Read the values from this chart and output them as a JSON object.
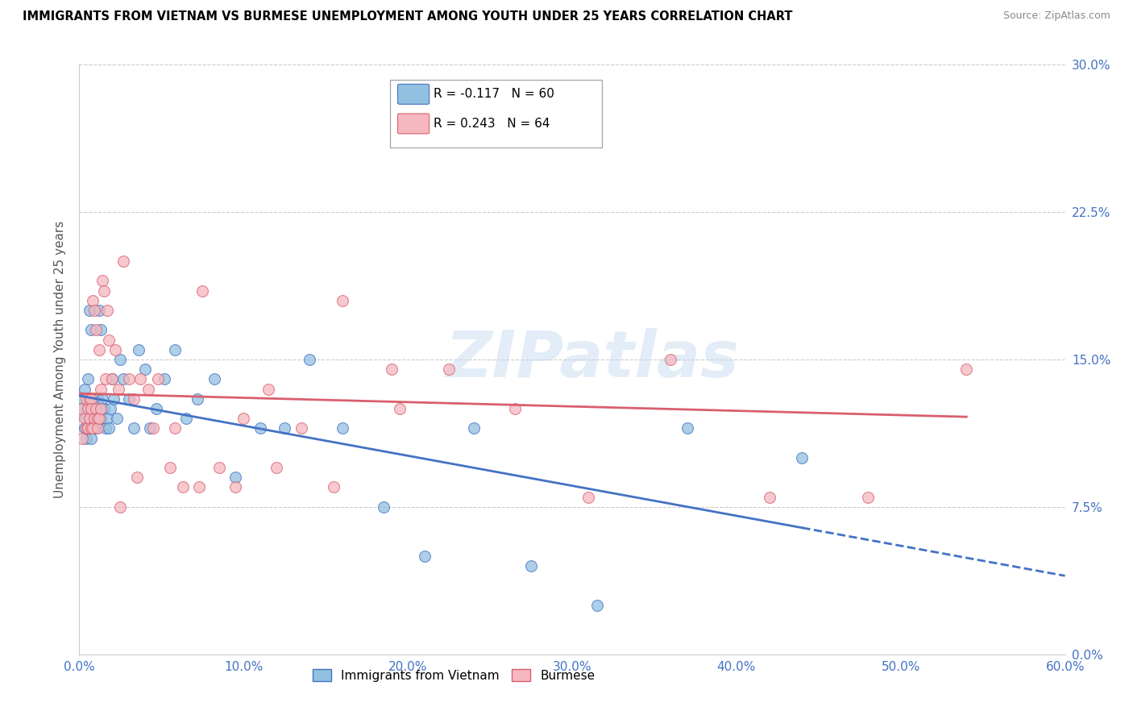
{
  "title": "IMMIGRANTS FROM VIETNAM VS BURMESE UNEMPLOYMENT AMONG YOUTH UNDER 25 YEARS CORRELATION CHART",
  "source": "Source: ZipAtlas.com",
  "ylabel": "Unemployment Among Youth under 25 years",
  "ylabel_ticks": [
    "0.0%",
    "7.5%",
    "15.0%",
    "22.5%",
    "30.0%"
  ],
  "ylabel_vals": [
    0.0,
    0.075,
    0.15,
    0.225,
    0.3
  ],
  "xlabel_ticks": [
    "0.0%",
    "10.0%",
    "20.0%",
    "30.0%",
    "40.0%",
    "50.0%",
    "60.0%"
  ],
  "xlabel_vals": [
    0.0,
    0.1,
    0.2,
    0.3,
    0.4,
    0.5,
    0.6
  ],
  "xlim": [
    0.0,
    0.6
  ],
  "ylim": [
    0.0,
    0.3
  ],
  "legend1_r": "R = -0.117",
  "legend1_n": "N = 60",
  "legend2_r": "R = 0.243",
  "legend2_n": "N = 64",
  "series1_name": "Immigrants from Vietnam",
  "series2_name": "Burmese",
  "series1_color": "#92C0E0",
  "series2_color": "#F5B8C0",
  "trend1_color": "#4472C4",
  "trend2_color": "#D95F6E",
  "watermark": "ZIPatlas",
  "vietnam_x": [
    0.001,
    0.002,
    0.003,
    0.003,
    0.004,
    0.004,
    0.005,
    0.005,
    0.005,
    0.006,
    0.006,
    0.007,
    0.007,
    0.007,
    0.008,
    0.008,
    0.008,
    0.009,
    0.009,
    0.01,
    0.01,
    0.011,
    0.011,
    0.012,
    0.013,
    0.013,
    0.014,
    0.015,
    0.016,
    0.017,
    0.018,
    0.019,
    0.02,
    0.021,
    0.023,
    0.025,
    0.027,
    0.03,
    0.033,
    0.036,
    0.04,
    0.043,
    0.047,
    0.052,
    0.058,
    0.065,
    0.072,
    0.082,
    0.095,
    0.11,
    0.125,
    0.14,
    0.16,
    0.185,
    0.21,
    0.24,
    0.275,
    0.315,
    0.37,
    0.44
  ],
  "vietnam_y": [
    0.125,
    0.13,
    0.115,
    0.135,
    0.12,
    0.11,
    0.125,
    0.14,
    0.115,
    0.175,
    0.12,
    0.165,
    0.12,
    0.11,
    0.118,
    0.125,
    0.115,
    0.13,
    0.115,
    0.12,
    0.115,
    0.118,
    0.13,
    0.175,
    0.165,
    0.12,
    0.13,
    0.125,
    0.115,
    0.12,
    0.115,
    0.125,
    0.14,
    0.13,
    0.12,
    0.15,
    0.14,
    0.13,
    0.115,
    0.155,
    0.145,
    0.115,
    0.125,
    0.14,
    0.155,
    0.12,
    0.13,
    0.14,
    0.09,
    0.115,
    0.115,
    0.15,
    0.115,
    0.075,
    0.05,
    0.115,
    0.045,
    0.025,
    0.115,
    0.1
  ],
  "burmese_x": [
    0.001,
    0.002,
    0.003,
    0.004,
    0.004,
    0.005,
    0.005,
    0.006,
    0.006,
    0.007,
    0.007,
    0.007,
    0.008,
    0.008,
    0.009,
    0.009,
    0.01,
    0.01,
    0.011,
    0.011,
    0.012,
    0.012,
    0.013,
    0.013,
    0.014,
    0.015,
    0.016,
    0.017,
    0.018,
    0.02,
    0.022,
    0.024,
    0.027,
    0.03,
    0.033,
    0.037,
    0.042,
    0.048,
    0.055,
    0.063,
    0.073,
    0.085,
    0.1,
    0.115,
    0.135,
    0.16,
    0.19,
    0.225,
    0.265,
    0.31,
    0.36,
    0.42,
    0.48,
    0.54,
    0.27,
    0.195,
    0.155,
    0.12,
    0.095,
    0.075,
    0.058,
    0.045,
    0.035,
    0.025
  ],
  "burmese_y": [
    0.125,
    0.11,
    0.12,
    0.13,
    0.115,
    0.125,
    0.115,
    0.12,
    0.13,
    0.13,
    0.115,
    0.125,
    0.18,
    0.115,
    0.175,
    0.12,
    0.125,
    0.165,
    0.12,
    0.115,
    0.155,
    0.12,
    0.135,
    0.125,
    0.19,
    0.185,
    0.14,
    0.175,
    0.16,
    0.14,
    0.155,
    0.135,
    0.2,
    0.14,
    0.13,
    0.14,
    0.135,
    0.14,
    0.095,
    0.085,
    0.085,
    0.095,
    0.12,
    0.135,
    0.115,
    0.18,
    0.145,
    0.145,
    0.125,
    0.08,
    0.15,
    0.08,
    0.08,
    0.145,
    0.275,
    0.125,
    0.085,
    0.095,
    0.085,
    0.185,
    0.115,
    0.115,
    0.09,
    0.075
  ]
}
